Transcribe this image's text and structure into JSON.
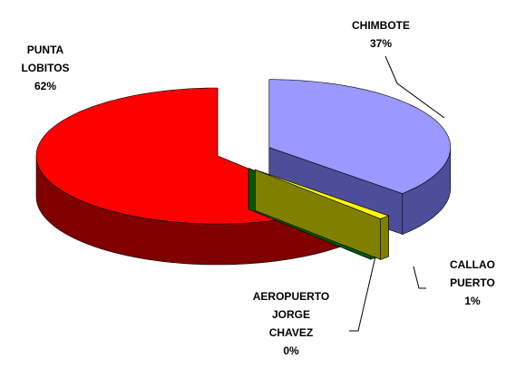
{
  "chart_data": {
    "type": "pie",
    "categories": [
      "CHIMBOTE",
      "CALLAO PUERTO",
      "AEROPUERTO JORGE CHAVEZ",
      "PUNTA LOBITOS"
    ],
    "values": [
      37,
      1,
      0.4,
      62
    ],
    "value_labels": [
      "37%",
      "1%",
      "0%",
      "62%"
    ],
    "colors": [
      "#9999ff",
      "#ffff00",
      "#008000",
      "#ff0000"
    ],
    "side_colors": [
      "#4d4d99",
      "#808000",
      "#005a00",
      "#800000"
    ]
  }
}
